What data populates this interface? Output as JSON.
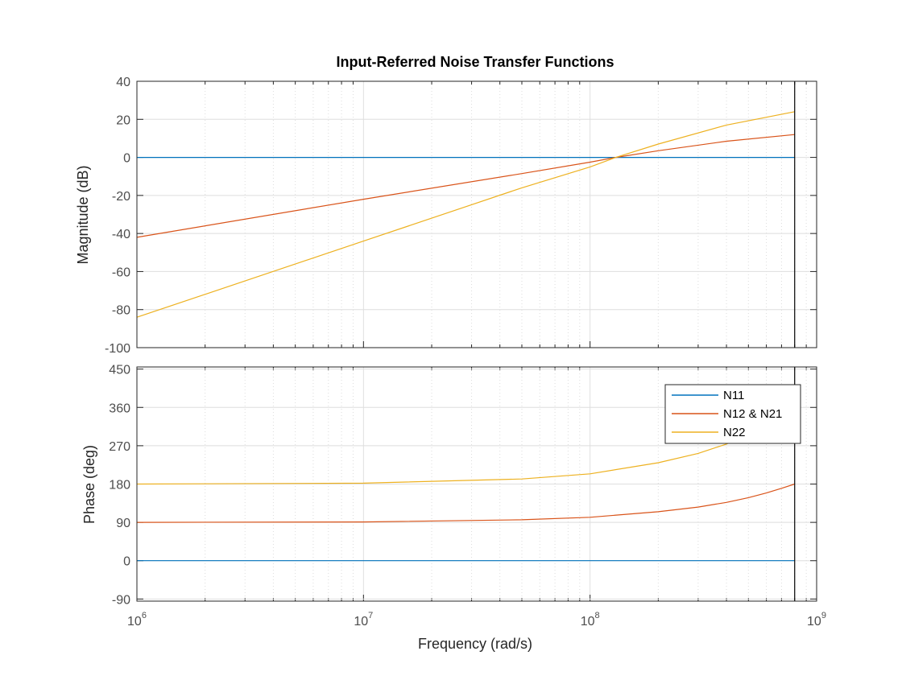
{
  "chart_data": {
    "type": "line",
    "title": "Input-Referred Noise Transfer Functions",
    "xlabel": "Frequency  (rad/s)",
    "x_scale": "log",
    "x_ticks": [
      {
        "value": 1000000,
        "base": "10",
        "exp": "6"
      },
      {
        "value": 10000000,
        "base": "10",
        "exp": "7"
      },
      {
        "value": 100000000,
        "base": "10",
        "exp": "8"
      },
      {
        "value": 1000000000,
        "base": "10",
        "exp": "9"
      }
    ],
    "xlim": [
      1000000,
      1000000000
    ],
    "x_marker": 800000000,
    "grid": true,
    "legend": {
      "placement": "top-right",
      "panel": "phase"
    },
    "series_colors": [
      "#0072BD",
      "#D95319",
      "#EDB120"
    ],
    "panels": [
      {
        "name": "magnitude",
        "ylabel": "Magnitude (dB)",
        "ylim": [
          -100,
          40
        ],
        "yticks": [
          -100,
          -80,
          -60,
          -40,
          -20,
          0,
          20,
          40
        ],
        "series": [
          {
            "name": "N11",
            "x": [
              1000000,
              10000000,
              100000000,
              800000000
            ],
            "y": [
              0,
              0,
              0,
              0
            ]
          },
          {
            "name": "N12 & N21",
            "x": [
              1000000,
              10000000,
              50000000,
              100000000,
              130000000,
              200000000,
              400000000,
              800000000
            ],
            "y": [
              -42,
              -22,
              -8.5,
              -2.5,
              0,
              3.5,
              8.5,
              12
            ]
          },
          {
            "name": "N22",
            "x": [
              1000000,
              10000000,
              50000000,
              100000000,
              130000000,
              200000000,
              400000000,
              800000000
            ],
            "y": [
              -84,
              -44,
              -16,
              -5,
              0,
              7,
              17,
              24
            ]
          }
        ]
      },
      {
        "name": "phase",
        "ylabel": "Phase (deg)",
        "ylim": [
          -95,
          455
        ],
        "yticks": [
          -90,
          0,
          90,
          180,
          270,
          360,
          450
        ],
        "series": [
          {
            "name": "N11",
            "x": [
              1000000,
              10000000,
              100000000,
              800000000
            ],
            "y": [
              0,
              0,
              0,
              0
            ]
          },
          {
            "name": "N12 & N21",
            "x": [
              1000000,
              10000000,
              50000000,
              100000000,
              200000000,
              300000000,
              400000000,
              500000000,
              600000000,
              700000000,
              800000000
            ],
            "y": [
              90,
              91,
              96,
              102,
              115,
              126,
              137,
              148,
              159,
              170,
              180
            ]
          },
          {
            "name": "N22",
            "x": [
              1000000,
              10000000,
              50000000,
              100000000,
              200000000,
              300000000,
              400000000,
              500000000,
              600000000,
              700000000,
              800000000
            ],
            "y": [
              180,
              182,
              192,
              204,
              230,
              252,
              274,
              296,
              318,
              340,
              360
            ]
          }
        ]
      }
    ]
  }
}
